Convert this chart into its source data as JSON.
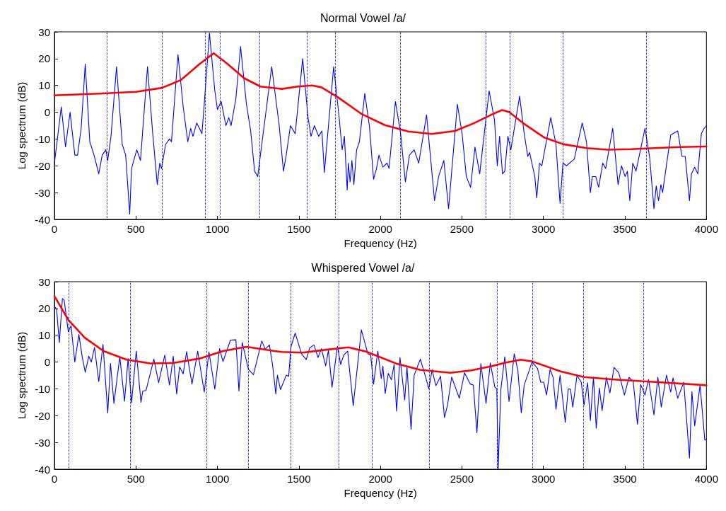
{
  "chart_data": [
    {
      "type": "line",
      "title": "Normal Vowel /a/",
      "xlabel": "Frequency (Hz)",
      "ylabel": "Log spectrum (dB)",
      "xlim": [
        0,
        4000
      ],
      "xticks": [
        0,
        500,
        1000,
        1500,
        2000,
        2500,
        3000,
        3500,
        4000
      ],
      "ylim": [
        -40,
        30
      ],
      "yticks": [
        -40,
        -30,
        -20,
        -10,
        0,
        10,
        20,
        30
      ],
      "grid": false,
      "marker": "none",
      "line_style": "solid",
      "series": [
        {
          "color": "#0000ff",
          "x": [
            0,
            42,
            68,
            96,
            125,
            142,
            164,
            189,
            217,
            243,
            272,
            293,
            315,
            327,
            347,
            381,
            416,
            437,
            462,
            473,
            505,
            528,
            571,
            603,
            631,
            646,
            657,
            682,
            706,
            718,
            758,
            790,
            818,
            836,
            850,
            873,
            905,
            922,
            951,
            984,
            1000,
            1023,
            1052,
            1070,
            1084,
            1113,
            1142,
            1178,
            1204,
            1228,
            1247,
            1272,
            1333,
            1379,
            1405,
            1422,
            1448,
            1477,
            1523,
            1555,
            1574,
            1595,
            1621,
            1641,
            1656,
            1713,
            1746,
            1765,
            1779,
            1796,
            1803,
            1814,
            1825,
            1837,
            1854,
            1871,
            1904,
            1933,
            1958,
            1976,
            1991,
            2015,
            2041,
            2053,
            2092,
            2124,
            2153,
            2178,
            2207,
            2235,
            2283,
            2332,
            2357,
            2389,
            2418,
            2472,
            2501,
            2527,
            2553,
            2580,
            2609,
            2667,
            2700,
            2717,
            2731,
            2749,
            2763,
            2782,
            2800,
            2854,
            2882,
            2904,
            2915,
            2947,
            2959,
            2976,
            2990,
            3045,
            3077,
            3102,
            3120,
            3141,
            3189,
            3238,
            3264,
            3288,
            3300,
            3321,
            3339,
            3364,
            3382,
            3425,
            3458,
            3479,
            3501,
            3515,
            3530,
            3548,
            3568,
            3623,
            3652,
            3678,
            3692,
            3706,
            3721,
            3731,
            3781,
            3824,
            3850,
            3870,
            3896,
            3908,
            3928,
            3947,
            3969,
            3986,
            4000
          ],
          "values": [
            -19,
            2,
            -13,
            0,
            -16,
            -16,
            -6,
            18,
            -11,
            -16,
            -23,
            -16,
            -14,
            -18,
            -9,
            17,
            -12,
            -16,
            -38,
            -21,
            -14,
            -18,
            17,
            -8,
            -27,
            -19,
            -21,
            -12,
            -10,
            -11,
            21.5,
            2,
            -11,
            -6,
            -9,
            -4,
            -8,
            5.5,
            29.5,
            8,
            1,
            4,
            -5,
            -2,
            -5,
            5,
            24.5,
            3,
            -7,
            -22,
            -24,
            -12,
            17,
            -5,
            -22,
            -16,
            -5,
            -8,
            20,
            -1.5,
            -9,
            -5,
            -9,
            -7,
            -22.5,
            17,
            -1.5,
            -14,
            -9,
            -29,
            -19,
            -26,
            -18,
            -27,
            -14,
            -11,
            7,
            -5.5,
            -25,
            -21,
            -16,
            -20.5,
            -19,
            -21,
            4,
            -8,
            -26,
            -16,
            -14,
            -19,
            -1,
            -33,
            -24,
            -18,
            -36,
            3,
            -8,
            -24,
            -28,
            -13,
            -23,
            8,
            -3,
            -20,
            -9,
            -23,
            -22,
            -9,
            -14,
            6,
            -8,
            -16.5,
            -15,
            -24,
            -32,
            -19,
            -20,
            -2,
            -12,
            -34,
            -19,
            -20,
            -17.5,
            -4,
            -11,
            -30,
            -24,
            -24,
            -28,
            -19,
            -21,
            -6,
            -27,
            -20,
            -24,
            -22,
            -33,
            -19,
            -22,
            -6,
            -17,
            -36,
            -27.5,
            -33,
            -27,
            -30,
            -8.5,
            -7,
            -16.5,
            -16.5,
            -33,
            -23,
            -20.5,
            -23,
            -8,
            -6,
            -5
          ]
        },
        {
          "color": "#ff0000",
          "x": [
            0,
            300,
            500,
            660,
            775,
            890,
            977,
            1063,
            1164,
            1264,
            1351,
            1394,
            1494,
            1581,
            1638,
            1739,
            1883,
            2027,
            2170,
            2314,
            2458,
            2573,
            2685,
            2746,
            2789,
            2876,
            3004,
            3120,
            3264,
            3393,
            3537,
            3681,
            3839,
            4000
          ],
          "values": [
            6.3,
            7,
            7.6,
            9.1,
            12,
            18,
            22,
            18,
            12.7,
            9.6,
            9,
            8.7,
            9.6,
            10,
            9.3,
            5.6,
            -0.6,
            -4.8,
            -7.2,
            -8.1,
            -7,
            -4.1,
            -0.8,
            0.8,
            0.1,
            -4.1,
            -9.4,
            -11.9,
            -13.4,
            -14,
            -13.8,
            -13.4,
            -13,
            -12.8
          ]
        }
      ],
      "ref_lines": [
        {
          "axis": "x",
          "value": 322,
          "color": "#0000ff",
          "line_style": "dotted"
        },
        {
          "axis": "x",
          "value": 660,
          "color": "#0000ff",
          "line_style": "dotted"
        },
        {
          "axis": "x",
          "value": 926,
          "color": "#0000ff",
          "line_style": "dotted"
        },
        {
          "axis": "x",
          "value": 1015,
          "color": "#0000ff",
          "line_style": "dotted"
        },
        {
          "axis": "x",
          "value": 1260,
          "color": "#0000ff",
          "line_style": "dotted"
        },
        {
          "axis": "x",
          "value": 1548,
          "color": "#0000ff",
          "line_style": "dotted"
        },
        {
          "axis": "x",
          "value": 1722,
          "color": "#0000ff",
          "line_style": "dotted"
        },
        {
          "axis": "x",
          "value": 2124,
          "color": "#0000ff",
          "line_style": "dotted"
        },
        {
          "axis": "x",
          "value": 2645,
          "color": "#0000ff",
          "line_style": "dotted"
        },
        {
          "axis": "x",
          "value": 2792,
          "color": "#0000ff",
          "line_style": "dotted"
        },
        {
          "axis": "x",
          "value": 3120,
          "color": "#0000ff",
          "line_style": "dotted"
        },
        {
          "axis": "x",
          "value": 3629,
          "color": "#0000ff",
          "line_style": "dotted"
        }
      ]
    },
    {
      "type": "line",
      "title": "Whispered Vowel /a/",
      "xlabel": "Frequency (Hz)",
      "ylabel": "Log spectrum (dB)",
      "xlim": [
        0,
        4000
      ],
      "xticks": [
        0,
        500,
        1000,
        1500,
        2000,
        2500,
        3000,
        3500,
        4000
      ],
      "ylim": [
        -40,
        30
      ],
      "yticks": [
        -40,
        -30,
        -20,
        -10,
        0,
        10,
        20,
        30
      ],
      "grid": false,
      "marker": "none",
      "line_style": "solid",
      "series": [
        {
          "color": "#0000ff",
          "x": [
            0,
            13,
            30,
            49,
            59,
            85,
            102,
            125,
            150,
            171,
            189,
            211,
            226,
            246,
            272,
            298,
            327,
            344,
            365,
            401,
            430,
            452,
            473,
            502,
            531,
            542,
            562,
            610,
            639,
            677,
            706,
            729,
            750,
            768,
            790,
            811,
            844,
            879,
            919,
            948,
            984,
            1013,
            1034,
            1080,
            1113,
            1132,
            1152,
            1190,
            1221,
            1272,
            1293,
            1319,
            1339,
            1358,
            1368,
            1387,
            1422,
            1437,
            1451,
            1477,
            1516,
            1545,
            1566,
            1592,
            1617,
            1638,
            1664,
            1681,
            1703,
            1736,
            1756,
            1775,
            1799,
            1833,
            1883,
            1923,
            1940,
            1958,
            1984,
            2005,
            2015,
            2029,
            2048,
            2067,
            2084,
            2099,
            2120,
            2149,
            2163,
            2188,
            2207,
            2245,
            2274,
            2297,
            2317,
            2340,
            2369,
            2393,
            2412,
            2437,
            2484,
            2516,
            2551,
            2570,
            2592,
            2616,
            2648,
            2674,
            2702,
            2714,
            2722,
            2739,
            2763,
            2789,
            2821,
            2843,
            2864,
            2882,
            2930,
            2964,
            2983,
            3002,
            3019,
            3041,
            3059,
            3077,
            3102,
            3134,
            3152,
            3166,
            3180,
            3206,
            3232,
            3249,
            3271,
            3288,
            3307,
            3324,
            3343,
            3360,
            3386,
            3408,
            3433,
            3462,
            3497,
            3525,
            3551,
            3577,
            3597,
            3623,
            3645,
            3678,
            3702,
            3723,
            3755,
            3781,
            3795,
            3824,
            3861,
            3896,
            3911,
            3928,
            3961,
            3990,
            4000
          ],
          "values": [
            20.7,
            19.8,
            7.3,
            23.7,
            23.3,
            11.4,
            13.6,
            0,
            10.3,
            1.7,
            -3.8,
            2.2,
            0,
            5.5,
            -7.3,
            6.6,
            -19,
            -0.5,
            -15.4,
            2,
            -14.6,
            1.3,
            -15.2,
            4.1,
            -15,
            -10.8,
            -10.6,
            1.1,
            -7.7,
            2.6,
            -8.6,
            2.2,
            -11.9,
            -1.8,
            -4.4,
            3.9,
            -8.2,
            4.1,
            -11.2,
            3.8,
            -10.1,
            5,
            0.2,
            8.2,
            8.3,
            -10.8,
            7.3,
            -2.7,
            -4.7,
            7.9,
            4.8,
            6.4,
            -1.4,
            -11.9,
            -4.9,
            -10.3,
            -4.9,
            -5.3,
            5.7,
            10.8,
            3.1,
            0.9,
            5.3,
            6.4,
            1.7,
            5,
            -1.4,
            4.4,
            -9.4,
            5.9,
            -0.9,
            2.6,
            4.1,
            -16.3,
            12,
            3.1,
            2.6,
            -8.2,
            4.1,
            -6.2,
            -1.5,
            -11.7,
            -4.2,
            -6.6,
            -0.9,
            -18.3,
            1.7,
            -14.1,
            -2,
            -25.1,
            -4.9,
            1.1,
            -4.9,
            -10,
            -2.9,
            -8.8,
            -5.3,
            -20.7,
            -15.9,
            -5.6,
            -13.5,
            -4,
            -8.2,
            -8.6,
            -26.4,
            -0.6,
            -15.4,
            -0.3,
            -9.4,
            -10,
            -40,
            -10.1,
            2,
            -14.7,
            3.1,
            -3.1,
            -18.9,
            -8.6,
            0,
            -2.4,
            -7.5,
            -7.5,
            -12.3,
            -2.7,
            -5.7,
            -17.6,
            -4.9,
            -22.5,
            -10,
            -10.1,
            -16.8,
            -5,
            -7.5,
            -16.1,
            -7.7,
            -21.8,
            -5.6,
            -24.7,
            -9.7,
            -18.1,
            -5.7,
            -11.5,
            -2,
            -4,
            -12.3,
            -5.7,
            -7.3,
            -23.2,
            -8.4,
            -12.3,
            -6.5,
            -19.7,
            -5.7,
            -16.8,
            -4.9,
            -11.2,
            -5.9,
            -13.5,
            -7.5,
            -35.8,
            -11,
            -23.8,
            -8.6,
            -29.1,
            -29
          ]
        },
        {
          "color": "#ff0000",
          "x": [
            0,
            85,
            186,
            301,
            444,
            588,
            732,
            890,
            1034,
            1178,
            1351,
            1394,
            1523,
            1667,
            1804,
            1912,
            2099,
            2243,
            2429,
            2559,
            2685,
            2760,
            2861,
            2933,
            3105,
            3249,
            3436,
            3652,
            3990,
            4000
          ],
          "values": [
            24.6,
            15.8,
            9.1,
            4.1,
            0.9,
            -0.5,
            -0.3,
            1.3,
            4.1,
            5.7,
            4.1,
            3.8,
            3.5,
            4.6,
            5.5,
            3.9,
            -0.6,
            -2.9,
            -4,
            -3.1,
            -1.5,
            -0.3,
            0.9,
            0.2,
            -3.5,
            -5.6,
            -6.5,
            -7.3,
            -8.6,
            -8.7
          ]
        }
      ],
      "ref_lines": [
        {
          "axis": "x",
          "value": 88,
          "color": "#0000ff",
          "line_style": "dotted"
        },
        {
          "axis": "x",
          "value": 467,
          "color": "#0000ff",
          "line_style": "dotted"
        },
        {
          "axis": "x",
          "value": 935,
          "color": "#0000ff",
          "line_style": "dotted"
        },
        {
          "axis": "x",
          "value": 1188,
          "color": "#0000ff",
          "line_style": "dotted"
        },
        {
          "axis": "x",
          "value": 1451,
          "color": "#0000ff",
          "line_style": "dotted"
        },
        {
          "axis": "x",
          "value": 1743,
          "color": "#0000ff",
          "line_style": "dotted"
        },
        {
          "axis": "x",
          "value": 1950,
          "color": "#0000ff",
          "line_style": "dotted"
        },
        {
          "axis": "x",
          "value": 2301,
          "color": "#0000ff",
          "line_style": "dotted"
        },
        {
          "axis": "x",
          "value": 2717,
          "color": "#0000ff",
          "line_style": "dotted"
        },
        {
          "axis": "x",
          "value": 2933,
          "color": "#0000ff",
          "line_style": "dotted"
        },
        {
          "axis": "x",
          "value": 3244,
          "color": "#0000ff",
          "line_style": "dotted"
        },
        {
          "axis": "x",
          "value": 3613,
          "color": "#0000ff",
          "line_style": "dotted"
        }
      ]
    }
  ]
}
